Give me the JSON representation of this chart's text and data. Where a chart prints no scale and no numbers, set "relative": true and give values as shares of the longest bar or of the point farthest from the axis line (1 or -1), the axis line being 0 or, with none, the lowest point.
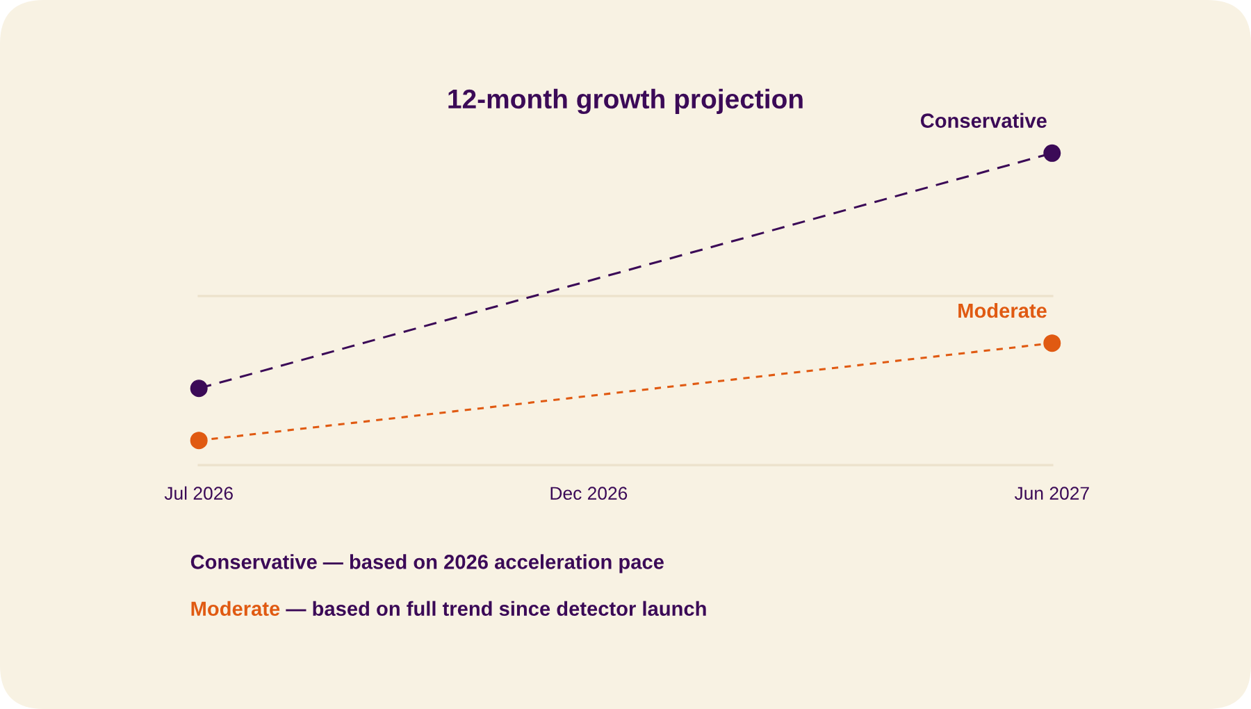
{
  "chart_data": {
    "type": "line",
    "title": "12-month growth projection",
    "relative": true,
    "legend": false,
    "marker": "circle",
    "x": [
      "2026-07",
      "2027-06"
    ],
    "xlim": [
      "2026-07",
      "2027-06"
    ],
    "xticks": [
      {
        "value": "2026-07",
        "label": "Jul 2026"
      },
      {
        "value": "2026-12",
        "label": "Dec 2026"
      },
      {
        "value": "2027-06",
        "label": "Jun 2027"
      }
    ],
    "series": [
      {
        "name": "Conservative",
        "color": "#3b0a57",
        "values": [
          0.246,
          1
        ],
        "line_style": "dashed"
      },
      {
        "name": "Moderate",
        "color": "#e05a12",
        "values": [
          0.079,
          0.391
        ],
        "line_style": "dotted"
      }
    ],
    "ref_lines": [
      {
        "axis": "y",
        "value": 0.542,
        "color": "#ece2cc"
      }
    ],
    "annotations": [
      "Conservative — based on 2026 acceleration pace",
      "Moderate — based on full trend since detector launch"
    ]
  }
}
